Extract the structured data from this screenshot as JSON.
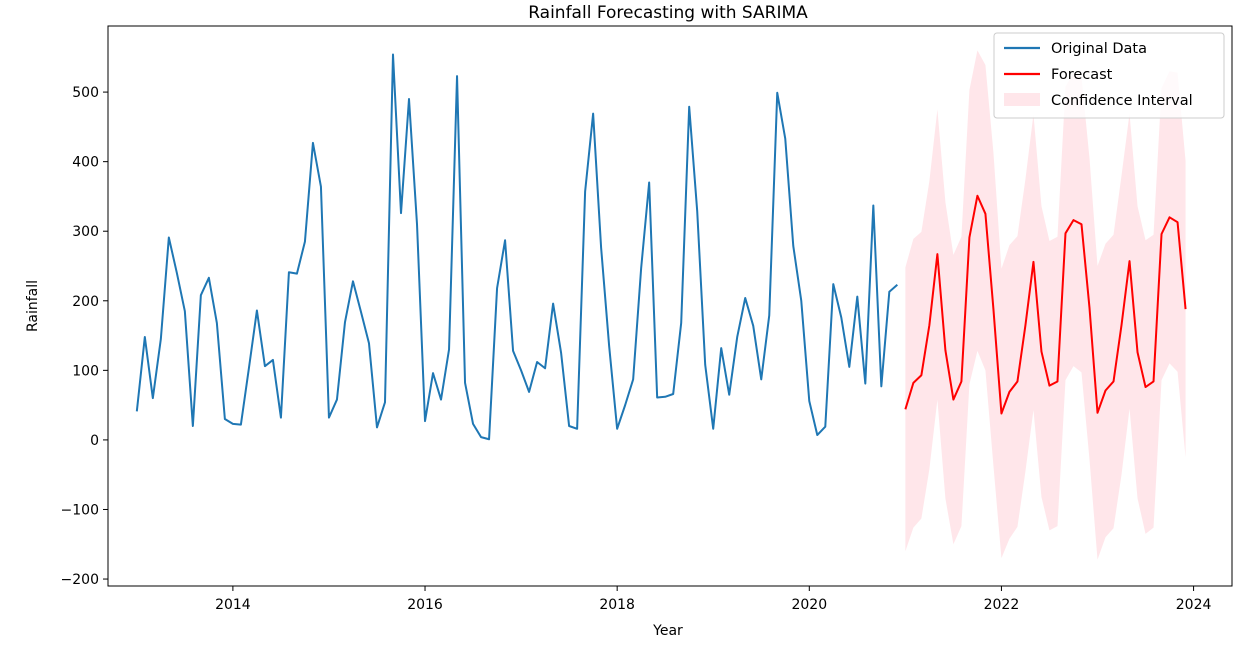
{
  "chart_data": {
    "type": "line",
    "title": "Rainfall Forecasting with SARIMA",
    "xlabel": "Year",
    "ylabel": "Rainfall",
    "xlim": [
      2012.7,
      2024.4
    ],
    "ylim": [
      -210,
      595
    ],
    "x_ticks": [
      2014,
      2016,
      2018,
      2020,
      2022,
      2024
    ],
    "y_ticks": [
      -200,
      -100,
      0,
      100,
      200,
      300,
      400,
      500
    ],
    "grid": false,
    "legend_position": "top-right",
    "original": {
      "name": "Original Data",
      "color": "#1f77b4",
      "start_year": 2013,
      "step": 0.08333,
      "values": [
        41,
        148,
        60,
        145,
        291,
        240,
        185,
        20,
        208,
        233,
        168,
        30,
        23,
        22,
        103,
        186,
        106,
        115,
        32,
        241,
        239,
        285,
        427,
        364,
        32,
        58,
        169,
        228,
        184,
        139,
        18,
        54,
        554,
        326,
        490,
        310,
        27,
        96,
        58,
        130,
        523,
        82,
        23,
        4,
        1,
        218,
        287,
        128,
        100,
        69,
        112,
        103,
        196,
        125,
        20,
        16,
        357,
        469,
        276,
        135,
        16,
        50,
        87,
        247,
        370,
        61,
        62,
        66,
        168,
        479,
        329,
        108,
        16,
        132,
        65,
        148,
        204,
        164,
        87,
        179,
        499,
        433,
        279,
        200,
        56,
        7,
        19,
        224,
        176,
        105,
        206,
        81,
        337,
        77,
        213,
        223
      ]
    },
    "forecast": {
      "name": "Forecast",
      "color": "#ff0000",
      "start_year": 2021,
      "step": 0.08333,
      "values": [
        44,
        82,
        93,
        165,
        267,
        129,
        58,
        84,
        291,
        351,
        325,
        188,
        38,
        69,
        84,
        165,
        256,
        127,
        78,
        84,
        297,
        316,
        310,
        190,
        39,
        71,
        84,
        165,
        257,
        126,
        76,
        84,
        296,
        320,
        313,
        188
      ],
      "lower": [
        -160,
        -126,
        -113,
        -42,
        58,
        -84,
        -150,
        -124,
        80,
        128,
        100,
        -37,
        -170,
        -142,
        -125,
        -45,
        43,
        -82,
        -130,
        -124,
        86,
        106,
        97,
        -28,
        -172,
        -140,
        -127,
        -50,
        45,
        -84,
        -135,
        -126,
        86,
        110,
        98,
        -25
      ],
      "upper": [
        248,
        289,
        299,
        372,
        475,
        342,
        266,
        292,
        503,
        560,
        539,
        413,
        246,
        280,
        293,
        375,
        468,
        336,
        286,
        292,
        508,
        527,
        522,
        405,
        250,
        282,
        295,
        380,
        469,
        336,
        287,
        295,
        506,
        530,
        528,
        401
      ]
    },
    "confidence_interval": {
      "name": "Confidence Interval",
      "color": "#ffc0cb",
      "opacity": 0.4
    }
  }
}
